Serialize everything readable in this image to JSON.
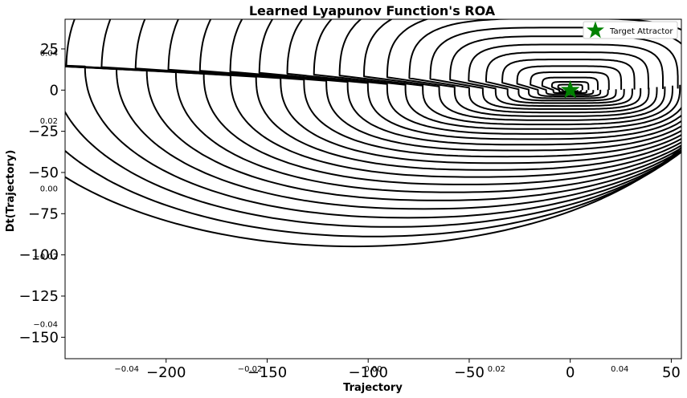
{
  "chart_data": {
    "type": "contour",
    "title": "Learned Lyapunov Function's ROA",
    "xlabel": "Trajectory",
    "ylabel": "Dt(Trajectory)",
    "xlim": [
      -250,
      55
    ],
    "ylim": [
      -163,
      43
    ],
    "xticks": [
      {
        "value": -200,
        "label": "−200"
      },
      {
        "value": -150,
        "label": "−150"
      },
      {
        "value": -100,
        "label": "−100"
      },
      {
        "value": -50,
        "label": "−50"
      },
      {
        "value": 0,
        "label": "0"
      },
      {
        "value": 50,
        "label": "50"
      }
    ],
    "yticks": [
      {
        "value": 25,
        "label": "25"
      },
      {
        "value": 0,
        "label": "0"
      },
      {
        "value": -25,
        "label": "−25"
      },
      {
        "value": -50,
        "label": "−50"
      },
      {
        "value": -75,
        "label": "−75"
      },
      {
        "value": -100,
        "label": "−100"
      },
      {
        "value": -125,
        "label": "−125"
      },
      {
        "value": -150,
        "label": "−150"
      }
    ],
    "overlay_xticks": [
      {
        "value": -0.04,
        "label": "−0.04"
      },
      {
        "value": -0.02,
        "label": "−0.02"
      },
      {
        "value": 0.0,
        "label": "0.00"
      },
      {
        "value": 0.02,
        "label": "0.02"
      },
      {
        "value": 0.04,
        "label": "0.04"
      }
    ],
    "overlay_yticks": [
      {
        "value": 0.04,
        "label": "0.04"
      },
      {
        "value": 0.02,
        "label": "0.02"
      },
      {
        "value": 0.0,
        "label": "0.00"
      },
      {
        "value": -0.02,
        "label": "−0.02"
      },
      {
        "value": -0.04,
        "label": "−0.04"
      }
    ],
    "overlay_range": [
      -0.05,
      0.05
    ],
    "series": [
      {
        "name": "Target Attractor",
        "marker": "star",
        "color": "#008000",
        "x": 0,
        "y": 0
      }
    ],
    "contour_color": "#000000",
    "contour_levels": 31,
    "legend_position": "top-right",
    "grid": false
  }
}
